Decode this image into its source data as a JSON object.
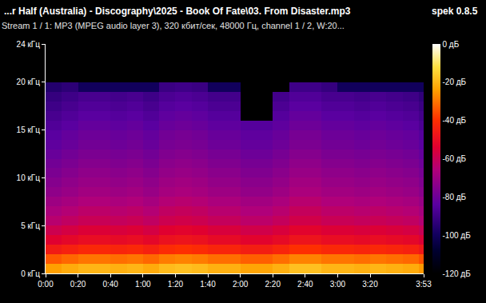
{
  "chart_data": {
    "type": "heatmap",
    "title": "...r Half (Australia) - Discography\\2025 - Book Of Fate\\03. From Disaster.mp3",
    "subtitle": "Stream 1 / 1: MP3 (MPEG audio layer 3), 320 кбит/сек, 48000 Гц, channel 1 / 2, W:20...",
    "annotations": [
      "spek 0.8.5"
    ],
    "grid": false,
    "x": [
      0,
      10,
      20,
      30,
      40,
      50,
      60,
      70,
      80,
      90,
      100,
      110,
      120,
      130,
      140,
      150,
      160,
      170,
      180,
      190,
      200,
      210,
      220,
      230,
      233
    ],
    "y": [
      0,
      1,
      2,
      3,
      4,
      5,
      6,
      7,
      8,
      9,
      10,
      11,
      12,
      13,
      14,
      15,
      16,
      17,
      18,
      19,
      20,
      21,
      22,
      23,
      24
    ],
    "xlim": [
      0,
      233
    ],
    "xticks": [
      {
        "value": 0,
        "label": "0:00"
      },
      {
        "value": 20,
        "label": "0:20"
      },
      {
        "value": 40,
        "label": "0:40"
      },
      {
        "value": 60,
        "label": "1:00"
      },
      {
        "value": 80,
        "label": "1:20"
      },
      {
        "value": 100,
        "label": "1:40"
      },
      {
        "value": 120,
        "label": "2:00"
      },
      {
        "value": 140,
        "label": "2:20"
      },
      {
        "value": 160,
        "label": "2:40"
      },
      {
        "value": 180,
        "label": "3:00"
      },
      {
        "value": 200,
        "label": "3:20"
      },
      {
        "value": 233,
        "label": "3:53"
      }
    ],
    "ylim": [
      0,
      24
    ],
    "yticks": [
      {
        "value": 0,
        "label": "0 кГц"
      },
      {
        "value": 5,
        "label": "5 кГц"
      },
      {
        "value": 10,
        "label": "10 кГц"
      },
      {
        "value": 15,
        "label": "15 кГц"
      },
      {
        "value": 20,
        "label": "20 кГц"
      },
      {
        "value": 24,
        "label": "24 кГц"
      }
    ],
    "colorbar": {
      "range": [
        -120,
        0
      ],
      "ticks": [
        {
          "value": 0,
          "label": "0 дБ"
        },
        {
          "value": -20,
          "label": "-20 дБ"
        },
        {
          "value": -40,
          "label": "-40 дБ"
        },
        {
          "value": -60,
          "label": "-60 дБ"
        },
        {
          "value": -80,
          "label": "-80 дБ"
        },
        {
          "value": -100,
          "label": "-100 дБ"
        },
        {
          "value": -120,
          "label": "-120 дБ"
        }
      ]
    },
    "z": [
      [
        -24,
        -22,
        -20,
        -20,
        -21,
        -20,
        -22,
        -19,
        -18,
        -19,
        -21,
        -21,
        -23,
        -23,
        -21,
        -18,
        -18,
        -20,
        -20,
        -21,
        -20,
        -21,
        -22,
        -25
      ],
      [
        -34,
        -32,
        -30,
        -30,
        -31,
        -30,
        -32,
        -29,
        -28,
        -29,
        -31,
        -31,
        -33,
        -33,
        -31,
        -28,
        -28,
        -30,
        -30,
        -31,
        -30,
        -31,
        -32,
        -35
      ],
      [
        -46,
        -44,
        -42,
        -42,
        -43,
        -42,
        -44,
        -41,
        -40,
        -41,
        -43,
        -43,
        -45,
        -45,
        -43,
        -40,
        -40,
        -42,
        -42,
        -43,
        -42,
        -43,
        -44,
        -47
      ],
      [
        -54,
        -52,
        -50,
        -50,
        -51,
        -50,
        -52,
        -49,
        -48,
        -49,
        -51,
        -51,
        -53,
        -53,
        -51,
        -48,
        -48,
        -50,
        -50,
        -51,
        -50,
        -51,
        -52,
        -55
      ],
      [
        -59,
        -57,
        -55,
        -55,
        -56,
        -55,
        -57,
        -54,
        -53,
        -54,
        -56,
        -56,
        -58,
        -58,
        -56,
        -53,
        -53,
        -55,
        -55,
        -56,
        -55,
        -56,
        -57,
        -60
      ],
      [
        -64,
        -62,
        -60,
        -60,
        -61,
        -60,
        -62,
        -59,
        -58,
        -59,
        -61,
        -61,
        -63,
        -63,
        -61,
        -58,
        -58,
        -60,
        -60,
        -61,
        -60,
        -61,
        -62,
        -65
      ],
      [
        -67,
        -65,
        -63,
        -63,
        -64,
        -63,
        -65,
        -62,
        -61,
        -62,
        -64,
        -64,
        -66,
        -66,
        -64,
        -61,
        -61,
        -63,
        -63,
        -64,
        -63,
        -64,
        -65,
        -68
      ],
      [
        -70,
        -68,
        -66,
        -66,
        -67,
        -66,
        -68,
        -65,
        -64,
        -65,
        -67,
        -67,
        -69,
        -69,
        -67,
        -64,
        -64,
        -66,
        -66,
        -67,
        -66,
        -67,
        -68,
        -71
      ],
      [
        -73,
        -71,
        -69,
        -69,
        -70,
        -69,
        -71,
        -68,
        -67,
        -68,
        -70,
        -70,
        -72,
        -72,
        -70,
        -67,
        -67,
        -69,
        -69,
        -70,
        -69,
        -70,
        -71,
        -74
      ],
      [
        -75,
        -73,
        -71,
        -71,
        -72,
        -71,
        -73,
        -70,
        -69,
        -70,
        -72,
        -72,
        -74,
        -74,
        -72,
        -69,
        -69,
        -71,
        -71,
        -72,
        -71,
        -72,
        -73,
        -76
      ],
      [
        -77,
        -75,
        -73,
        -73,
        -74,
        -73,
        -75,
        -72,
        -71,
        -72,
        -74,
        -74,
        -76,
        -76,
        -74,
        -71,
        -71,
        -73,
        -73,
        -74,
        -73,
        -74,
        -75,
        -78
      ],
      [
        -79,
        -77,
        -75,
        -75,
        -76,
        -75,
        -77,
        -74,
        -73,
        -74,
        -76,
        -76,
        -78,
        -78,
        -76,
        -73,
        -73,
        -75,
        -75,
        -76,
        -75,
        -76,
        -77,
        -80
      ],
      [
        -81,
        -79,
        -77,
        -77,
        -78,
        -77,
        -79,
        -76,
        -75,
        -76,
        -78,
        -78,
        -80,
        -80,
        -78,
        -75,
        -75,
        -77,
        -77,
        -78,
        -77,
        -78,
        -79,
        -82
      ],
      [
        -83,
        -81,
        -79,
        -79,
        -80,
        -79,
        -81,
        -78,
        -77,
        -78,
        -80,
        -80,
        -82,
        -82,
        -80,
        -77,
        -77,
        -79,
        -79,
        -80,
        -79,
        -80,
        -81,
        -84
      ],
      [
        -84,
        -82,
        -80,
        -80,
        -81,
        -80,
        -82,
        -79,
        -78,
        -79,
        -81,
        -81,
        -83,
        -83,
        -81,
        -78,
        -78,
        -80,
        -80,
        -81,
        -80,
        -81,
        -82,
        -85
      ],
      [
        -86,
        -84,
        -82,
        -82,
        -83,
        -82,
        -84,
        -81,
        -80,
        -81,
        -83,
        -83,
        -85,
        -85,
        -83,
        -80,
        -80,
        -82,
        -82,
        -83,
        -82,
        -83,
        -84,
        -87
      ],
      [
        -88,
        -86,
        -84,
        -84,
        -85,
        -84,
        -86,
        -83,
        -82,
        -83,
        -85,
        -85,
        -120,
        -120,
        -85,
        -82,
        -82,
        -84,
        -84,
        -85,
        -84,
        -85,
        -86,
        -89
      ],
      [
        -90,
        -88,
        -86,
        -86,
        -87,
        -86,
        -88,
        -85,
        -84,
        -85,
        -87,
        -87,
        -120,
        -120,
        -87,
        -84,
        -84,
        -86,
        -86,
        -87,
        -86,
        -87,
        -88,
        -91
      ],
      [
        -92,
        -90,
        -88,
        -88,
        -89,
        -88,
        -90,
        -87,
        -86,
        -87,
        -89,
        -89,
        -120,
        -120,
        -89,
        -86,
        -86,
        -88,
        -88,
        -89,
        -88,
        -89,
        -90,
        -93
      ],
      [
        -96,
        -94,
        -100,
        -100,
        -100,
        -100,
        -100,
        -91,
        -90,
        -91,
        -100,
        -100,
        -120,
        -120,
        -120,
        -90,
        -90,
        -92,
        -100,
        -100,
        -100,
        -100,
        -100,
        -100
      ],
      [
        -120,
        -120,
        -120,
        -120,
        -120,
        -120,
        -120,
        -120,
        -120,
        -120,
        -120,
        -120,
        -120,
        -120,
        -120,
        -120,
        -120,
        -120,
        -120,
        -120,
        -120,
        -120,
        -120,
        -120
      ],
      [
        -120,
        -120,
        -120,
        -120,
        -120,
        -120,
        -120,
        -120,
        -120,
        -120,
        -120,
        -120,
        -120,
        -120,
        -120,
        -120,
        -120,
        -120,
        -120,
        -120,
        -120,
        -120,
        -120,
        -120
      ],
      [
        -120,
        -120,
        -120,
        -120,
        -120,
        -120,
        -120,
        -120,
        -120,
        -120,
        -120,
        -120,
        -120,
        -120,
        -120,
        -120,
        -120,
        -120,
        -120,
        -120,
        -120,
        -120,
        -120,
        -120
      ],
      [
        -120,
        -120,
        -120,
        -120,
        -120,
        -120,
        -120,
        -120,
        -120,
        -120,
        -120,
        -120,
        -120,
        -120,
        -120,
        -120,
        -120,
        -120,
        -120,
        -120,
        -120,
        -120,
        -120,
        -120
      ]
    ]
  }
}
